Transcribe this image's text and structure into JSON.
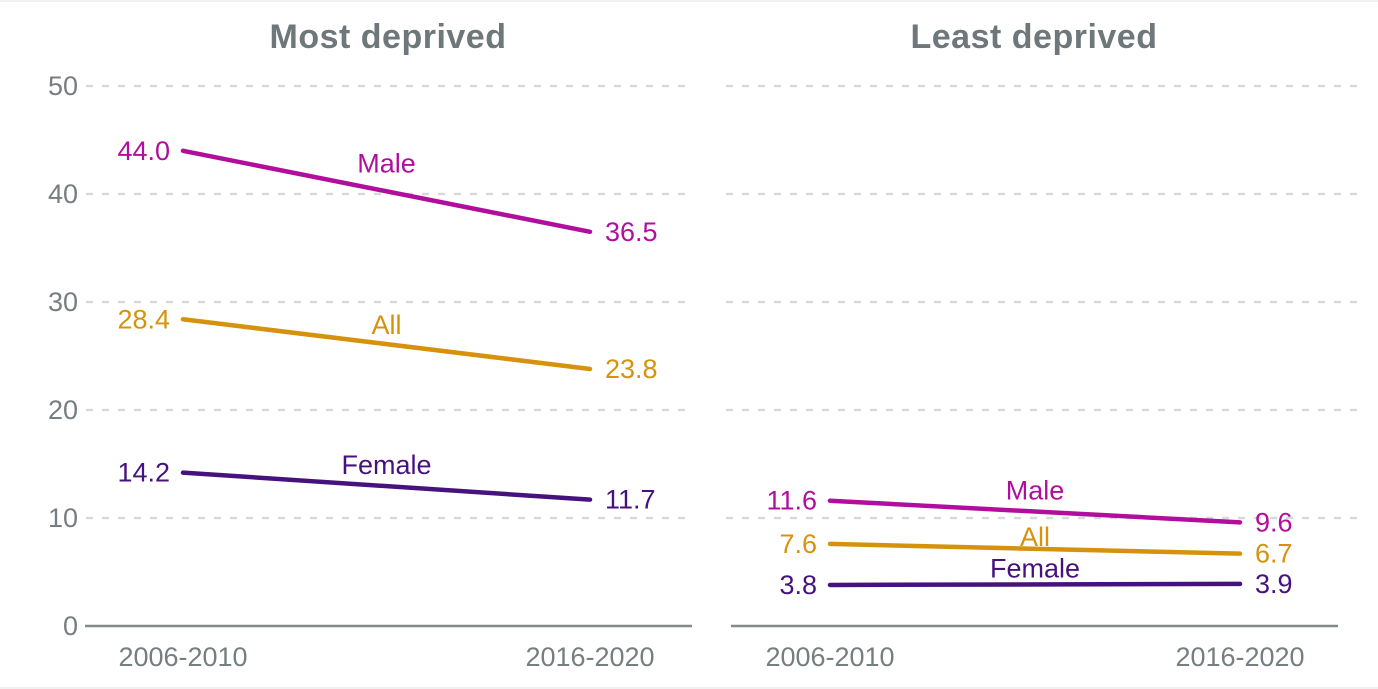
{
  "page": {
    "background": "#ffffff"
  },
  "chart_data": {
    "type": "line",
    "categories": [
      "2006-2010",
      "2016-2020"
    ],
    "ylim": [
      0,
      50
    ],
    "yticks": [
      0,
      10,
      20,
      30,
      40,
      50
    ],
    "grid": "horizontal-dashed",
    "legend": "inline-series-labels",
    "colors": {
      "male": "#b10e9d",
      "all": "#d6920d",
      "female": "#46137e",
      "title": "#6e777a",
      "tick": "#767e81",
      "axis": "#84898c",
      "grid": "#d9d9d9"
    },
    "panels": [
      {
        "title": "Most deprived",
        "series": [
          {
            "name": "Male",
            "color_key": "male",
            "values": [
              44.0,
              36.5
            ],
            "labels": [
              "44.0",
              "36.5"
            ]
          },
          {
            "name": "All",
            "color_key": "all",
            "values": [
              28.4,
              23.8
            ],
            "labels": [
              "28.4",
              "23.8"
            ]
          },
          {
            "name": "Female",
            "color_key": "female",
            "values": [
              14.2,
              11.7
            ],
            "labels": [
              "14.2",
              "11.7"
            ]
          }
        ]
      },
      {
        "title": "Least deprived",
        "series": [
          {
            "name": "Male",
            "color_key": "male",
            "values": [
              11.6,
              9.6
            ],
            "labels": [
              "11.6",
              "9.6"
            ]
          },
          {
            "name": "All",
            "color_key": "all",
            "values": [
              7.6,
              6.7
            ],
            "labels": [
              "7.6",
              "6.7"
            ]
          },
          {
            "name": "Female",
            "color_key": "female",
            "values": [
              3.8,
              3.9
            ],
            "labels": [
              "3.8",
              "3.9"
            ]
          }
        ]
      }
    ]
  }
}
